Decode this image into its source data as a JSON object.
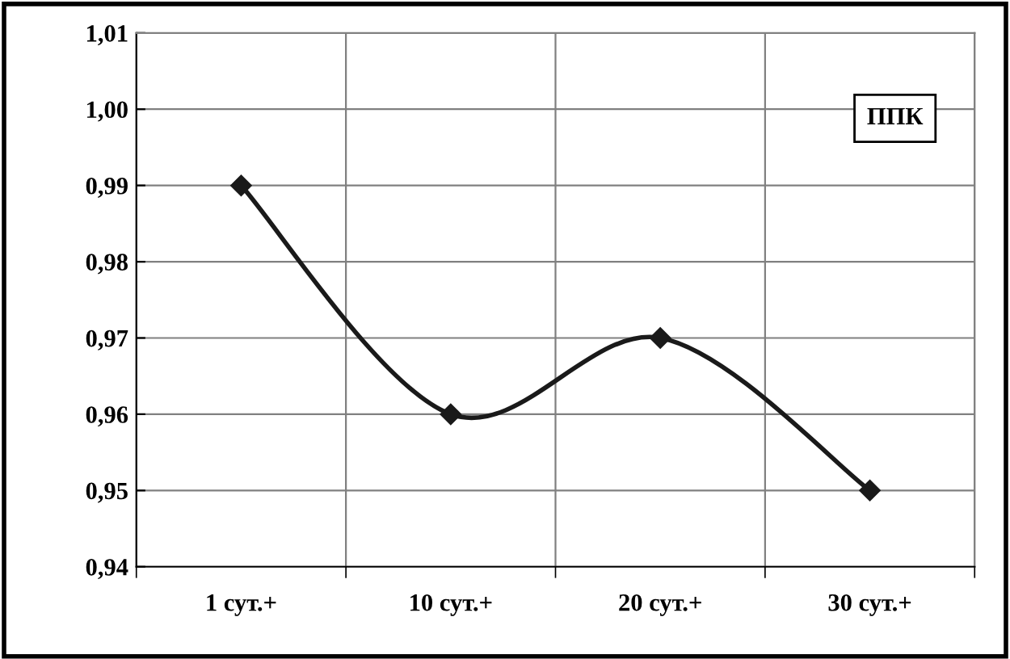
{
  "chart_data": {
    "type": "line",
    "categories": [
      "1 сут.+",
      "10 сут.+",
      "20 сут.+",
      "30 сут.+"
    ],
    "series": [
      {
        "color": "#1a1a1a",
        "values": [
          0.99,
          0.96,
          0.97,
          0.95
        ]
      }
    ],
    "ylim": [
      0.94,
      1.01
    ],
    "yticks": [
      {
        "value": 0.94,
        "label": "0,94"
      },
      {
        "value": 0.95,
        "label": "0,95"
      },
      {
        "value": 0.96,
        "label": "0,96"
      },
      {
        "value": 0.97,
        "label": "0,97"
      },
      {
        "value": 0.98,
        "label": "0,98"
      },
      {
        "value": 0.99,
        "label": "0,99"
      },
      {
        "value": 1.0,
        "label": "1,00"
      },
      {
        "value": 1.01,
        "label": "1,01"
      }
    ],
    "grid": true,
    "marker": "diamond",
    "line_style": "solid",
    "annotations": [
      "ППК"
    ]
  }
}
